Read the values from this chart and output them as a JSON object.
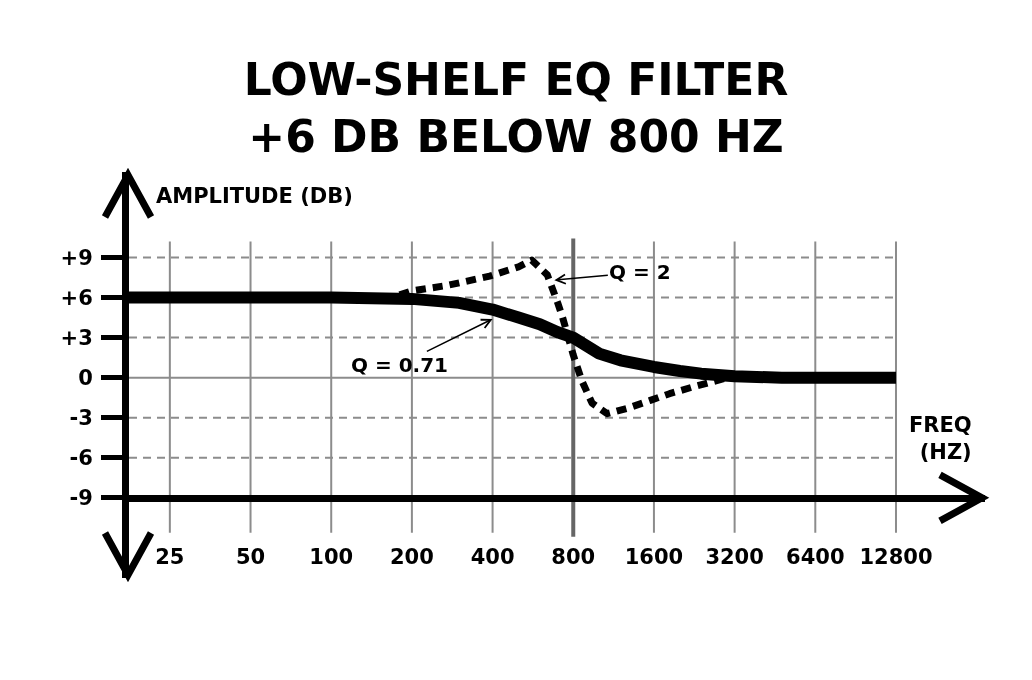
{
  "chart_data": {
    "type": "line",
    "title": "LOW-SHELF EQ FILTER\n+6 DB BELOW 800 HZ",
    "xlabel": "FREQ\n(HZ)",
    "ylabel": "AMPLITUDE (DB)",
    "log": "x",
    "grid": true,
    "xlim": [
      17.6,
      27500
    ],
    "xticks": [
      25,
      50,
      100,
      200,
      400,
      800,
      1600,
      3200,
      6400,
      12800
    ],
    "ylim": [
      -15,
      15.4
    ],
    "yticks": [
      {
        "value": 9,
        "label": "+9"
      },
      {
        "value": 6,
        "label": "+6"
      },
      {
        "value": 3,
        "label": "+3"
      },
      0,
      -3,
      -6,
      -9
    ],
    "series": [
      {
        "x": [
          17.6,
          100,
          200,
          300,
          400,
          500,
          600,
          700,
          800,
          1000,
          1200,
          1600,
          2000,
          2400,
          3200,
          4800,
          6400,
          12800
        ],
        "values": [
          6,
          6,
          5.9,
          5.6,
          5.1,
          4.5,
          4.0,
          3.4,
          3.0,
          1.8,
          1.3,
          0.8,
          0.5,
          0.3,
          0.1,
          0,
          0,
          0
        ],
        "color": "#000000",
        "line_style": "solid"
      },
      {
        "x": [
          180,
          200,
          270,
          390,
          500,
          560,
          640,
          700,
          730,
          800,
          860,
          940,
          1070,
          1270,
          1550,
          1830,
          2230,
          2650,
          3150
        ],
        "values": [
          6.2,
          6.5,
          6.9,
          7.6,
          8.3,
          8.8,
          7.7,
          5.6,
          4.5,
          1.7,
          -0.2,
          -1.9,
          -2.7,
          -2.3,
          -1.7,
          -1.2,
          -0.7,
          -0.3,
          0.1
        ],
        "color": "#000000",
        "line_style": "dotted"
      }
    ],
    "ref_lines": [
      {
        "axis": "x",
        "value": 800,
        "color": "#666666"
      }
    ],
    "annotations": [
      {
        "text": "Q = 0.71",
        "x": 400,
        "y": 4.4
      },
      {
        "text": "Q = 2",
        "x": 680,
        "y": 7.3
      }
    ]
  }
}
